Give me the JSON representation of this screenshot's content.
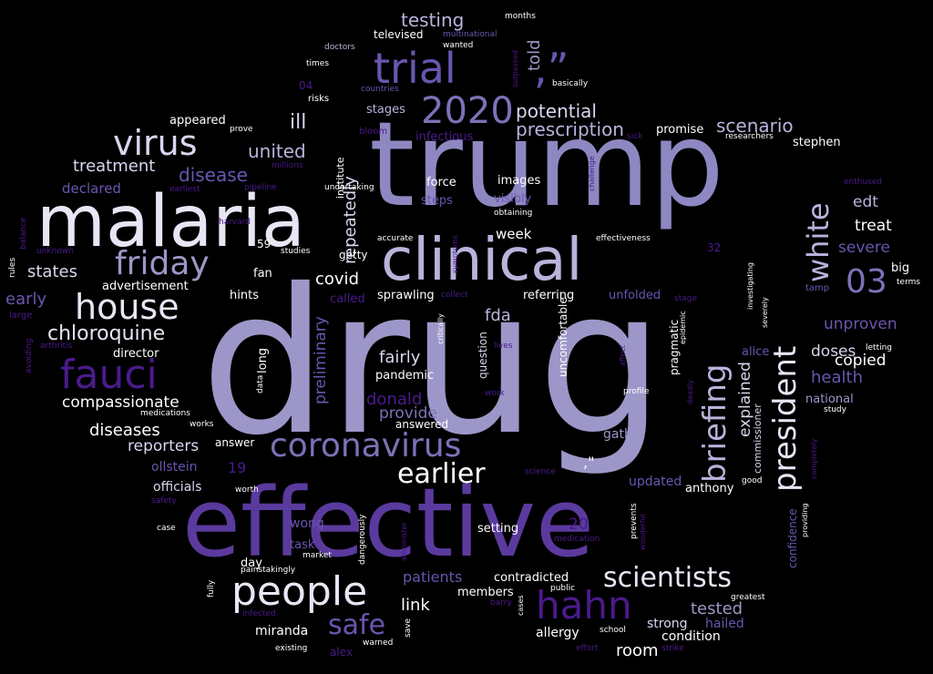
{
  "palette": {
    "lavender": "#9c97c8",
    "light": "#e8e6f5",
    "mid": "#7b72b8",
    "purple": "#5b3a9e",
    "deep": "#4a1b8c",
    "white": "#ffffff",
    "dim": "#3a2a66"
  },
  "words": [
    {
      "text": "drug",
      "color": "#9c97c8",
      "rot": false
    },
    {
      "text": "trump",
      "color": "#8e88c2",
      "rot": false
    },
    {
      "text": "effective",
      "color": "#5b3a9e",
      "rot": false
    },
    {
      "text": "malaria",
      "color": "#e8e6f5",
      "rot": false
    },
    {
      "text": "clinical",
      "color": "#b8b4dc",
      "rot": false
    },
    {
      "text": "trial",
      "color": "#6a55b0",
      "rot": false
    },
    {
      "text": ",”",
      "color": "#6a55b0",
      "rot": false
    },
    {
      "text": "2020",
      "color": "#7b72b8",
      "rot": false
    },
    {
      "text": "virus",
      "color": "#d8d6ee",
      "rot": false
    },
    {
      "text": "friday",
      "color": "#9c97c8",
      "rot": false
    },
    {
      "text": "house",
      "color": "#e8e6f5",
      "rot": false
    },
    {
      "text": "fauci",
      "color": "#4a1b8c",
      "rot": false
    },
    {
      "text": "coronavirus",
      "color": "#7b72b8",
      "rot": false
    },
    {
      "text": "people",
      "color": "#e8e6f5",
      "rot": false
    },
    {
      "text": "hahn",
      "color": "#4a1b8c",
      "rot": false
    },
    {
      "text": "scientists",
      "color": "#e8e6f5",
      "rot": false
    },
    {
      "text": "earlier",
      "color": "#ffffff",
      "rot": false
    },
    {
      "text": "president",
      "color": "#e8e6f5",
      "rot": true
    },
    {
      "text": "white",
      "color": "#b8b4dc",
      "rot": true
    },
    {
      "text": "briefing",
      "color": "#b8b4dc",
      "rot": true
    },
    {
      "text": "03",
      "color": "#7b72b8",
      "rot": false
    },
    {
      "text": "safe",
      "color": "#6a55b0",
      "rot": false
    },
    {
      "text": "chloroquine",
      "color": "#e8e6f5",
      "rot": false
    },
    {
      "text": "testing",
      "color": "#b8b4dc",
      "rot": false
    },
    {
      "text": "potential",
      "color": "#d8d6ee",
      "rot": false
    },
    {
      "text": "prescription",
      "color": "#b8b4dc",
      "rot": false
    },
    {
      "text": "scenario",
      "color": "#b8b4dc",
      "rot": false
    },
    {
      "text": "repeatedly",
      "color": "#d8d6ee",
      "rot": true
    },
    {
      "text": "told",
      "color": "#9c97c8",
      "rot": true
    },
    {
      "text": "ill",
      "color": "#d8d6ee",
      "rot": false
    },
    {
      "text": "united",
      "color": "#b8b4dc",
      "rot": false
    },
    {
      "text": "treatment",
      "color": "#d8d6ee",
      "rot": false
    },
    {
      "text": "disease",
      "color": "#6a55b0",
      "rot": false
    },
    {
      "text": "declared",
      "color": "#6a55b0",
      "rot": false
    },
    {
      "text": "states",
      "color": "#d8d6ee",
      "rot": false
    },
    {
      "text": "early",
      "color": "#6a55b0",
      "rot": false
    },
    {
      "text": "advertisement",
      "color": "#ffffff",
      "rot": false
    },
    {
      "text": "covid",
      "color": "#ffffff",
      "rot": false
    },
    {
      "text": "fda",
      "color": "#b8b4dc",
      "rot": false
    },
    {
      "text": "week",
      "color": "#ffffff",
      "rot": false
    },
    {
      "text": "fairly",
      "color": "#d8d6ee",
      "rot": false
    },
    {
      "text": "donald",
      "color": "#4a1b8c",
      "rot": false
    },
    {
      "text": "provide",
      "color": "#7b72b8",
      "rot": false
    },
    {
      "text": "compassionate",
      "color": "#ffffff",
      "rot": false
    },
    {
      "text": "diseases",
      "color": "#ffffff",
      "rot": false
    },
    {
      "text": "reporters",
      "color": "#d8d6ee",
      "rot": false
    },
    {
      "text": "preliminary",
      "color": "#6a55b0",
      "rot": true
    },
    {
      "text": "edt",
      "color": "#b8b4dc",
      "rot": false
    },
    {
      "text": "treat",
      "color": "#ffffff",
      "rot": false
    },
    {
      "text": "severe",
      "color": "#6a55b0",
      "rot": false
    },
    {
      "text": "unproven",
      "color": "#6a55b0",
      "rot": false
    },
    {
      "text": "doses",
      "color": "#d8d6ee",
      "rot": false
    },
    {
      "text": "health",
      "color": "#6a55b0",
      "rot": false
    },
    {
      "text": "explained",
      "color": "#d8d6ee",
      "rot": true
    },
    {
      "text": "copied",
      "color": "#ffffff",
      "rot": false
    },
    {
      "text": "national",
      "color": "#9c97c8",
      "rot": false
    },
    {
      "text": "tested",
      "color": "#9c97c8",
      "rot": false
    },
    {
      "text": "link",
      "color": "#ffffff",
      "rot": false
    },
    {
      "text": "patients",
      "color": "#6a55b0",
      "rot": false
    },
    {
      "text": "contradicted",
      "color": "#ffffff",
      "rot": false
    },
    {
      "text": "members",
      "color": "#ffffff",
      "rot": false
    },
    {
      "text": "room",
      "color": "#ffffff",
      "rot": false
    },
    {
      "text": "strong",
      "color": "#d8d6ee",
      "rot": false
    },
    {
      "text": "hailed",
      "color": "#6a55b0",
      "rot": false
    },
    {
      "text": "condition",
      "color": "#ffffff",
      "rot": false
    },
    {
      "text": "allergy",
      "color": "#ffffff",
      "rot": false
    },
    {
      "text": "miranda",
      "color": "#ffffff",
      "rot": false
    },
    {
      "text": "wong",
      "color": "#6a55b0",
      "rot": false
    },
    {
      "text": "officials",
      "color": "#d8d6ee",
      "rot": false
    },
    {
      "text": "ollstein",
      "color": "#6a55b0",
      "rot": false
    },
    {
      "text": "19",
      "color": "#4a1b8c",
      "rot": false
    },
    {
      "text": "20",
      "color": "#4a1b8c",
      "rot": false
    },
    {
      "text": "updated",
      "color": "#6a55b0",
      "rot": false
    },
    {
      "text": "anthony",
      "color": "#ffffff",
      "rot": false
    },
    {
      "text": "gather",
      "color": "#9c97c8",
      "rot": false
    },
    {
      "text": "pandemic",
      "color": "#ffffff",
      "rot": false
    },
    {
      "text": "answered",
      "color": "#ffffff",
      "rot": false
    },
    {
      "text": "setting",
      "color": "#ffffff",
      "rot": false
    },
    {
      "text": "day",
      "color": "#ffffff",
      "rot": false
    },
    {
      "text": "task",
      "color": "#6a55b0",
      "rot": false
    },
    {
      "text": "director",
      "color": "#ffffff",
      "rot": false
    },
    {
      "text": "long",
      "color": "#ffffff",
      "rot": true
    },
    {
      "text": "question",
      "color": "#d8d6ee",
      "rot": true
    },
    {
      "text": "uncomfortable",
      "color": "#ffffff",
      "rot": true
    },
    {
      "text": "pragmatic",
      "color": "#ffffff",
      "rot": true
    },
    {
      "text": "confidence",
      "color": "#6a55b0",
      "rot": true
    },
    {
      "text": "commissioner",
      "color": "#d8d6ee",
      "rot": true
    },
    {
      "text": "promise",
      "color": "#ffffff",
      "rot": false
    },
    {
      "text": "stephen",
      "color": "#ffffff",
      "rot": false
    },
    {
      "text": "big",
      "color": "#ffffff",
      "rot": false
    },
    {
      "text": "images",
      "color": "#ffffff",
      "rot": false
    },
    {
      "text": "force",
      "color": "#ffffff",
      "rot": false
    },
    {
      "text": "steps",
      "color": "#6a55b0",
      "rot": false
    },
    {
      "text": "visibly",
      "color": "#6a55b0",
      "rot": false
    },
    {
      "text": "appeared",
      "color": "#ffffff",
      "rot": false
    },
    {
      "text": "stages",
      "color": "#b8b4dc",
      "rot": false
    },
    {
      "text": "infectious",
      "color": "#4a1b8c",
      "rot": false
    },
    {
      "text": "institute",
      "color": "#ffffff",
      "rot": true
    },
    {
      "text": "undertaking",
      "color": "#ffffff",
      "rot": false
    },
    {
      "text": "televised",
      "color": "#ffffff",
      "rot": false
    },
    {
      "text": "multinational",
      "color": "#6a55b0",
      "rot": false
    },
    {
      "text": "wanted",
      "color": "#ffffff",
      "rot": false
    },
    {
      "text": "months",
      "color": "#ffffff",
      "rot": false
    },
    {
      "text": "doctors",
      "color": "#b8b4dc",
      "rot": false
    },
    {
      "text": "times",
      "color": "#ffffff",
      "rot": false
    },
    {
      "text": "04",
      "color": "#4a1b8c",
      "rot": false
    },
    {
      "text": "risks",
      "color": "#ffffff",
      "rot": false
    },
    {
      "text": "countries",
      "color": "#6a55b0",
      "rot": false
    },
    {
      "text": "bloom",
      "color": "#4a1b8c",
      "rot": false
    },
    {
      "text": "basically",
      "color": "#ffffff",
      "rot": false
    },
    {
      "text": "prove",
      "color": "#ffffff",
      "rot": false
    },
    {
      "text": "millions",
      "color": "#4a1b8c",
      "rot": false
    },
    {
      "text": "pipeline",
      "color": "#4a1b8c",
      "rot": false
    },
    {
      "text": "earliest",
      "color": "#4a1b8c",
      "rot": false
    },
    {
      "text": "harvard",
      "color": "#4a1b8c",
      "rot": false
    },
    {
      "text": "unknown",
      "color": "#4a1b8c",
      "rot": false
    },
    {
      "text": "balance",
      "color": "#4a1b8c",
      "rot": true
    },
    {
      "text": "rules",
      "color": "#ffffff",
      "rot": true
    },
    {
      "text": "large",
      "color": "#4a1b8c",
      "rot": false
    },
    {
      "text": "arthritis",
      "color": "#4a1b8c",
      "rot": false
    },
    {
      "text": "avoiding",
      "color": "#4a1b8c",
      "rot": true
    },
    {
      "text": "59",
      "color": "#ffffff",
      "rot": false
    },
    {
      "text": "studies",
      "color": "#ffffff",
      "rot": false
    },
    {
      "text": "getty",
      "color": "#ffffff",
      "rot": false
    },
    {
      "text": "accurate",
      "color": "#ffffff",
      "rot": false
    },
    {
      "text": "obtaining",
      "color": "#ffffff",
      "rot": false
    },
    {
      "text": "effectiveness",
      "color": "#ffffff",
      "rot": false
    },
    {
      "text": "symptoms",
      "color": "#4a1b8c",
      "rot": true
    },
    {
      "text": "fan",
      "color": "#ffffff",
      "rot": false
    },
    {
      "text": "hints",
      "color": "#ffffff",
      "rot": false
    },
    {
      "text": "called",
      "color": "#4a1b8c",
      "rot": false
    },
    {
      "text": "sprawling",
      "color": "#ffffff",
      "rot": false
    },
    {
      "text": "collect",
      "color": "#4a1b8c",
      "rot": false
    },
    {
      "text": "referring",
      "color": "#ffffff",
      "rot": false
    },
    {
      "text": "unfolded",
      "color": "#6a55b0",
      "rot": false
    },
    {
      "text": "stage",
      "color": "#4a1b8c",
      "rot": false
    },
    {
      "text": "critically",
      "color": "#ffffff",
      "rot": true
    },
    {
      "text": "lives",
      "color": "#4a1b8c",
      "rot": false
    },
    {
      "text": "work",
      "color": "#4a1b8c",
      "rot": false
    },
    {
      "text": "affect",
      "color": "#4a1b8c",
      "rot": true
    },
    {
      "text": "profile",
      "color": "#ffffff",
      "rot": false
    },
    {
      "text": "epidemic",
      "color": "#ffffff",
      "rot": true
    },
    {
      "text": "alice",
      "color": "#6a55b0",
      "rot": false
    },
    {
      "text": "investigating",
      "color": "#ffffff",
      "rot": true
    },
    {
      "text": "severely",
      "color": "#ffffff",
      "rot": true
    },
    {
      "text": "tamp",
      "color": "#6a55b0",
      "rot": false
    },
    {
      "text": "32",
      "color": "#4a1b8c",
      "rot": false
    },
    {
      "text": "terms",
      "color": "#ffffff",
      "rot": false
    },
    {
      "text": "letting",
      "color": "#ffffff",
      "rot": false
    },
    {
      "text": "study",
      "color": "#ffffff",
      "rot": false
    },
    {
      "text": "data",
      "color": "#ffffff",
      "rot": true
    },
    {
      "text": "medications",
      "color": "#ffffff",
      "rot": false
    },
    {
      "text": "works",
      "color": "#ffffff",
      "rot": false
    },
    {
      "text": "answer",
      "color": "#ffffff",
      "rot": false
    },
    {
      "text": "worth",
      "color": "#ffffff",
      "rot": false
    },
    {
      "text": "safety",
      "color": "#4a1b8c",
      "rot": false
    },
    {
      "text": "case",
      "color": "#ffffff",
      "rot": false
    },
    {
      "text": "market",
      "color": "#ffffff",
      "rot": false
    },
    {
      "text": "painstakingly",
      "color": "#ffffff",
      "rot": false
    },
    {
      "text": "fully",
      "color": "#ffffff",
      "rot": true
    },
    {
      "text": "dangerously",
      "color": "#ffffff",
      "rot": true
    },
    {
      "text": "administer",
      "color": "#4a1b8c",
      "rot": true
    },
    {
      "text": "infected",
      "color": "#4a1b8c",
      "rot": false
    },
    {
      "text": "existing",
      "color": "#ffffff",
      "rot": false
    },
    {
      "text": "alex",
      "color": "#4a1b8c",
      "rot": false
    },
    {
      "text": "save",
      "color": "#ffffff",
      "rot": true
    },
    {
      "text": "warned",
      "color": "#ffffff",
      "rot": false
    },
    {
      "text": "cases",
      "color": "#ffffff",
      "rot": true
    },
    {
      "text": "barry",
      "color": "#4a1b8c",
      "rot": false
    },
    {
      "text": "public",
      "color": "#ffffff",
      "rot": false
    },
    {
      "text": "medication",
      "color": "#4a1b8c",
      "rot": false
    },
    {
      "text": "science",
      "color": "#4a1b8c",
      "rot": false
    },
    {
      "text": "effort",
      "color": "#4a1b8c",
      "rot": false
    },
    {
      "text": "school",
      "color": "#ffffff",
      "rot": false
    },
    {
      "text": "strike",
      "color": "#4a1b8c",
      "rot": false
    },
    {
      "text": "prevents",
      "color": "#ffffff",
      "rot": true
    },
    {
      "text": "wonderful",
      "color": "#4a1b8c",
      "rot": true
    },
    {
      "text": "greatest",
      "color": "#ffffff",
      "rot": false
    },
    {
      "text": "providing",
      "color": "#ffffff",
      "rot": true
    },
    {
      "text": "completely",
      "color": "#4a1b8c",
      "rot": true
    },
    {
      "text": "good",
      "color": "#ffffff",
      "rot": false
    },
    {
      "text": "enthused",
      "color": "#4a1b8c",
      "rot": false
    },
    {
      "text": "researchers",
      "color": "#ffffff",
      "rot": false
    },
    {
      "text": "sick",
      "color": "#4a1b8c",
      "rot": false
    },
    {
      "text": "challenge",
      "color": "#4a1b8c",
      "rot": true
    },
    {
      "text": "surpassed",
      "color": "#4a1b8c",
      "rot": true
    },
    {
      "text": "deadly",
      "color": "#4a1b8c",
      "rot": true
    },
    {
      "text": ",\"",
      "color": "#ffffff",
      "rot": false
    }
  ]
}
